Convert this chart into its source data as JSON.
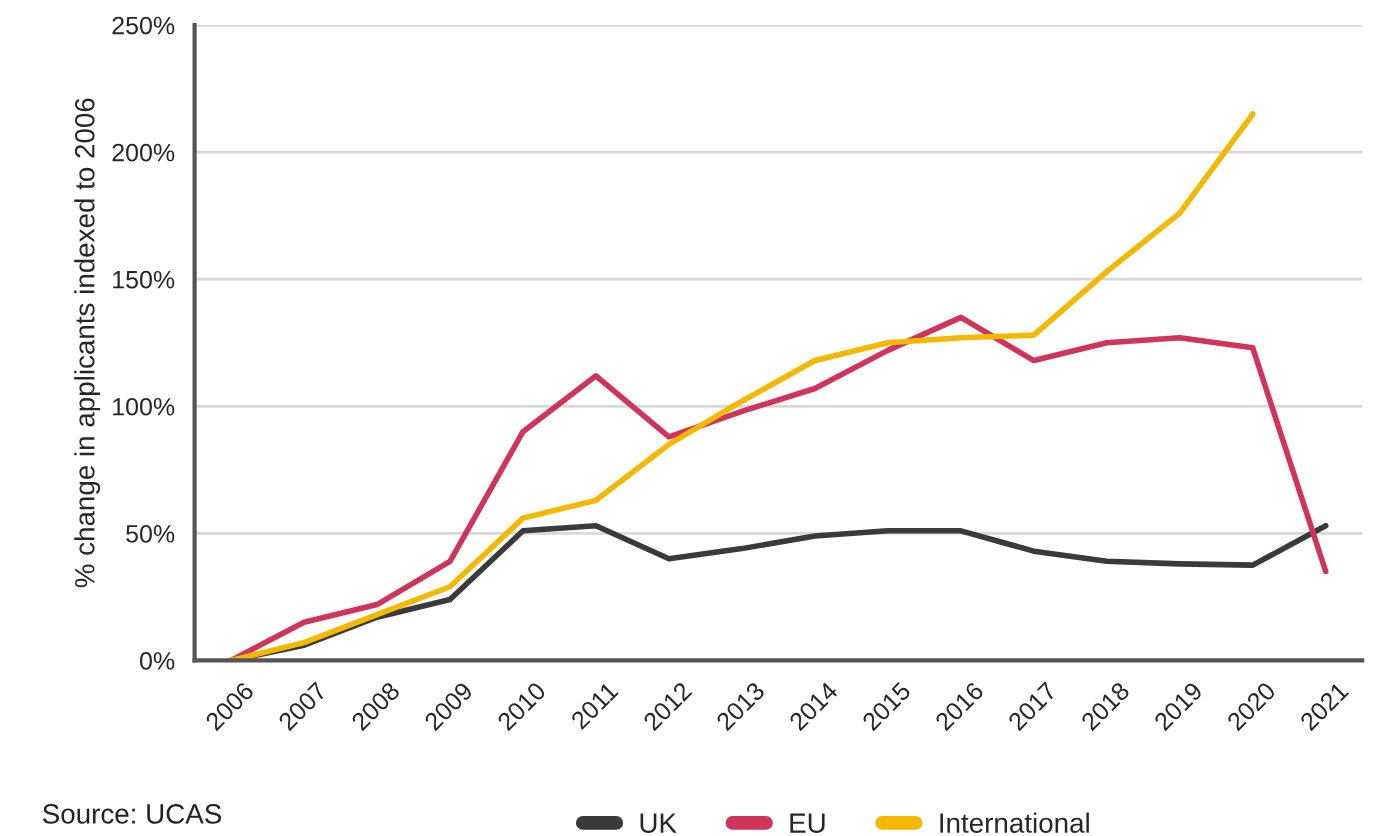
{
  "chart_data": {
    "type": "line",
    "ylabel": "% change in applicants indexed to 2006",
    "categories": [
      "2006",
      "2007",
      "2008",
      "2009",
      "2010",
      "2011",
      "2012",
      "2013",
      "2014",
      "2015",
      "2016",
      "2017",
      "2018",
      "2019",
      "2020",
      "2021"
    ],
    "series": [
      {
        "name": "UK",
        "color": "#3a3a3a",
        "values": [
          0,
          6,
          17,
          24,
          51,
          53,
          40,
          44,
          49,
          51,
          51,
          43,
          39,
          38,
          37.5,
          53
        ]
      },
      {
        "name": "EU",
        "color": "#d0345a",
        "values": [
          0,
          15,
          22,
          39,
          90,
          112,
          88,
          98,
          107,
          122,
          135,
          118,
          125,
          127,
          123,
          35
        ]
      },
      {
        "name": "International",
        "color": "#f5b800",
        "values": [
          0,
          7,
          18,
          29,
          56,
          63,
          85,
          102,
          118,
          125,
          127,
          128,
          153,
          176,
          215,
          null
        ]
      }
    ],
    "ylim": [
      0,
      250
    ],
    "yticks": [
      {
        "value": 0,
        "label": "0%"
      },
      {
        "value": 50,
        "label": "50%"
      },
      {
        "value": 100,
        "label": "100%"
      },
      {
        "value": 150,
        "label": "150%"
      },
      {
        "value": 200,
        "label": "200%"
      },
      {
        "value": 250,
        "label": "250%"
      }
    ],
    "grid": "y",
    "legend": "bottom",
    "marker": "none",
    "line_style": "solid",
    "annotations": [
      "Source: UCAS"
    ]
  }
}
